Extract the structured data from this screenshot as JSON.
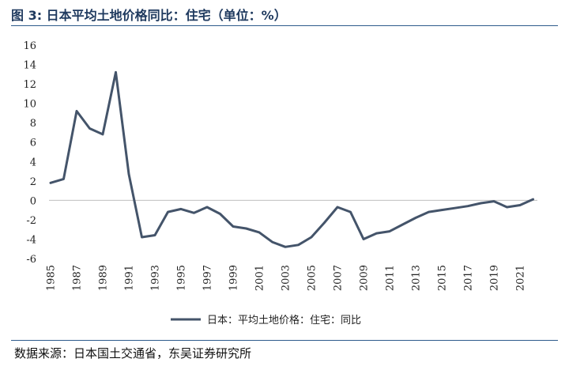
{
  "header": {
    "title": "图 3:  日本平均土地价格同比：住宅（单位：%）"
  },
  "footer": {
    "source": "数据来源：日本国土交通省，东吴证券研究所"
  },
  "colors": {
    "series": "#44546a",
    "rule": "#2e5b8c",
    "title": "#1f3a5f"
  },
  "chart_data": {
    "type": "line",
    "title": "图 3:  日本平均土地价格同比：住宅（单位：%）",
    "xlabel": "",
    "ylabel": "",
    "ylim": [
      -6,
      16
    ],
    "yticks": [
      16,
      14,
      12,
      10,
      8,
      6,
      4,
      2,
      0,
      -2,
      -4,
      -6
    ],
    "xtick_labels": [
      "1985",
      "1987",
      "1989",
      "1991",
      "1993",
      "1995",
      "1997",
      "1999",
      "2001",
      "2003",
      "2005",
      "2007",
      "2009",
      "2011",
      "2013",
      "2015",
      "2017",
      "2019",
      "2021"
    ],
    "grid": false,
    "legend": "bottom-center",
    "series": [
      {
        "name": "日本：平均土地价格：住宅：同比",
        "x": [
          1985,
          1986,
          1987,
          1988,
          1989,
          1990,
          1991,
          1992,
          1993,
          1994,
          1995,
          1996,
          1997,
          1998,
          1999,
          2000,
          2001,
          2002,
          2003,
          2004,
          2005,
          2006,
          2007,
          2008,
          2009,
          2010,
          2011,
          2012,
          2013,
          2014,
          2015,
          2016,
          2017,
          2018,
          2019,
          2020,
          2021,
          2022
        ],
        "values": [
          1.8,
          2.2,
          9.2,
          7.4,
          6.8,
          13.2,
          2.7,
          -3.8,
          -3.6,
          -1.2,
          -0.9,
          -1.3,
          -0.7,
          -1.4,
          -2.7,
          -2.9,
          -3.3,
          -4.3,
          -4.8,
          -4.6,
          -3.8,
          -2.3,
          -0.7,
          -1.2,
          -4.0,
          -3.4,
          -3.2,
          -2.5,
          -1.8,
          -1.2,
          -1.0,
          -0.8,
          -0.6,
          -0.3,
          -0.1,
          -0.7,
          -0.5,
          0.1
        ]
      }
    ]
  }
}
